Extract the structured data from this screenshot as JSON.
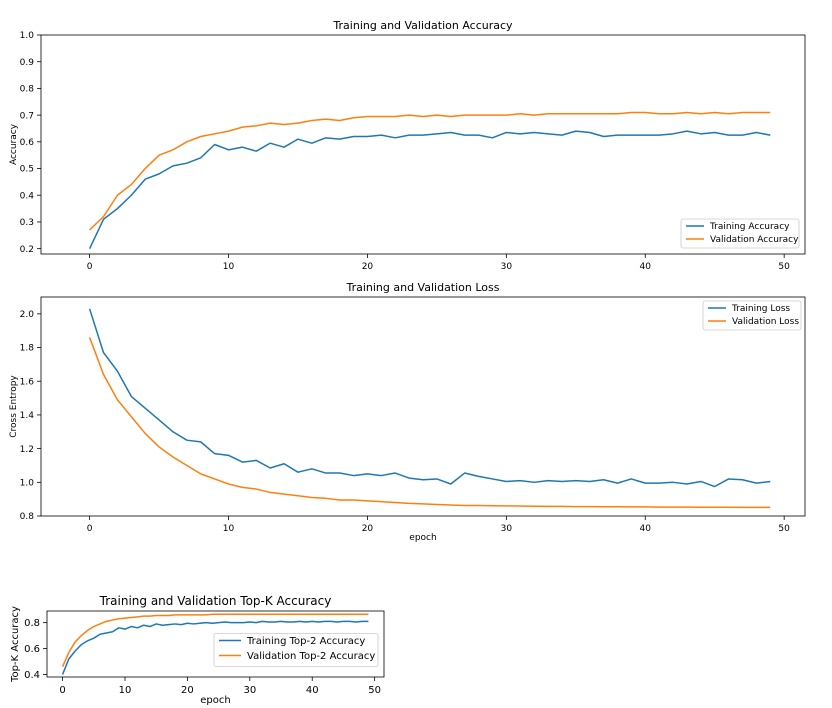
{
  "chart_data": [
    {
      "type": "line",
      "title": "Training and Validation Accuracy",
      "xlabel": "",
      "ylabel": "Accuracy",
      "xlim": [
        -3.5,
        51.5
      ],
      "ylim": [
        0.18,
        1.0
      ],
      "xticks": [
        0,
        10,
        20,
        30,
        40,
        50
      ],
      "yticks": [
        0.2,
        0.3,
        0.4,
        0.5,
        0.6,
        0.7,
        0.8,
        0.9,
        1.0
      ],
      "xtick_labels": [
        "0",
        "10",
        "20",
        "30",
        "40",
        "50"
      ],
      "ytick_labels": [
        "0.2",
        "0.3",
        "0.4",
        "0.5",
        "0.6",
        "0.7",
        "0.8",
        "0.9",
        "1.0"
      ],
      "legend": "lower-right",
      "grid": false,
      "x": [
        0,
        1,
        2,
        3,
        4,
        5,
        6,
        7,
        8,
        9,
        10,
        11,
        12,
        13,
        14,
        15,
        16,
        17,
        18,
        19,
        20,
        21,
        22,
        23,
        24,
        25,
        26,
        27,
        28,
        29,
        30,
        31,
        32,
        33,
        34,
        35,
        36,
        37,
        38,
        39,
        40,
        41,
        42,
        43,
        44,
        45,
        46,
        47,
        48,
        49
      ],
      "series": [
        {
          "name": "Training Accuracy",
          "color": "#1f77b4",
          "values": [
            0.2,
            0.31,
            0.35,
            0.4,
            0.46,
            0.48,
            0.51,
            0.52,
            0.54,
            0.59,
            0.57,
            0.58,
            0.565,
            0.595,
            0.58,
            0.61,
            0.595,
            0.615,
            0.61,
            0.62,
            0.62,
            0.625,
            0.615,
            0.625,
            0.625,
            0.63,
            0.635,
            0.625,
            0.625,
            0.615,
            0.635,
            0.63,
            0.635,
            0.63,
            0.625,
            0.64,
            0.635,
            0.62,
            0.625,
            0.625,
            0.625,
            0.625,
            0.63,
            0.64,
            0.63,
            0.635,
            0.625,
            0.625,
            0.635,
            0.625
          ]
        },
        {
          "name": "Validation Accuracy",
          "color": "#ff7f0e",
          "values": [
            0.27,
            0.32,
            0.4,
            0.44,
            0.5,
            0.55,
            0.57,
            0.6,
            0.62,
            0.63,
            0.64,
            0.655,
            0.66,
            0.67,
            0.665,
            0.67,
            0.68,
            0.685,
            0.68,
            0.69,
            0.695,
            0.695,
            0.695,
            0.7,
            0.695,
            0.7,
            0.695,
            0.7,
            0.7,
            0.7,
            0.7,
            0.705,
            0.7,
            0.705,
            0.705,
            0.705,
            0.705,
            0.705,
            0.705,
            0.71,
            0.71,
            0.705,
            0.705,
            0.71,
            0.705,
            0.71,
            0.705,
            0.71,
            0.71,
            0.71
          ]
        }
      ]
    },
    {
      "type": "line",
      "title": "Training and Validation Loss",
      "xlabel": "epoch",
      "ylabel": "Cross Entropy",
      "xlim": [
        -3.5,
        51.5
      ],
      "ylim": [
        0.8,
        2.1
      ],
      "xticks": [
        0,
        10,
        20,
        30,
        40,
        50
      ],
      "yticks": [
        0.8,
        1.0,
        1.2,
        1.4,
        1.6,
        1.8,
        2.0
      ],
      "xtick_labels": [
        "0",
        "10",
        "20",
        "30",
        "40",
        "50"
      ],
      "ytick_labels": [
        "0.8",
        "1.0",
        "1.2",
        "1.4",
        "1.6",
        "1.8",
        "2.0"
      ],
      "legend": "upper-right",
      "grid": false,
      "x": [
        0,
        1,
        2,
        3,
        4,
        5,
        6,
        7,
        8,
        9,
        10,
        11,
        12,
        13,
        14,
        15,
        16,
        17,
        18,
        19,
        20,
        21,
        22,
        23,
        24,
        25,
        26,
        27,
        28,
        29,
        30,
        31,
        32,
        33,
        34,
        35,
        36,
        37,
        38,
        39,
        40,
        41,
        42,
        43,
        44,
        45,
        46,
        47,
        48,
        49
      ],
      "series": [
        {
          "name": "Training Loss",
          "color": "#1f77b4",
          "values": [
            2.03,
            1.77,
            1.66,
            1.51,
            1.44,
            1.37,
            1.3,
            1.25,
            1.24,
            1.17,
            1.16,
            1.12,
            1.13,
            1.085,
            1.11,
            1.06,
            1.08,
            1.055,
            1.055,
            1.04,
            1.05,
            1.04,
            1.055,
            1.025,
            1.015,
            1.02,
            0.99,
            1.055,
            1.035,
            1.02,
            1.005,
            1.01,
            1.0,
            1.01,
            1.005,
            1.01,
            1.005,
            1.015,
            0.995,
            1.02,
            0.995,
            0.995,
            1.0,
            0.99,
            1.005,
            0.975,
            1.02,
            1.015,
            0.995,
            1.005
          ]
        },
        {
          "name": "Validation Loss",
          "color": "#ff7f0e",
          "values": [
            1.86,
            1.64,
            1.49,
            1.39,
            1.29,
            1.21,
            1.15,
            1.1,
            1.05,
            1.02,
            0.99,
            0.97,
            0.96,
            0.94,
            0.93,
            0.92,
            0.91,
            0.905,
            0.895,
            0.895,
            0.89,
            0.885,
            0.88,
            0.875,
            0.872,
            0.868,
            0.865,
            0.862,
            0.862,
            0.861,
            0.86,
            0.859,
            0.858,
            0.857,
            0.857,
            0.856,
            0.856,
            0.855,
            0.855,
            0.854,
            0.854,
            0.853,
            0.853,
            0.853,
            0.852,
            0.852,
            0.852,
            0.851,
            0.851,
            0.851
          ]
        }
      ]
    },
    {
      "type": "line",
      "title": "Training and Validation Top-K Accuracy",
      "xlabel": "epoch",
      "ylabel": "Top-K Accuracy",
      "xlim": [
        -2.5,
        51.5
      ],
      "ylim": [
        0.38,
        0.89
      ],
      "xticks": [
        0,
        10,
        20,
        30,
        40,
        50
      ],
      "yticks": [
        0.4,
        0.6,
        0.8
      ],
      "xtick_labels": [
        "0",
        "10",
        "20",
        "30",
        "40",
        "50"
      ],
      "ytick_labels": [
        "0.4",
        "0.6",
        "0.8"
      ],
      "legend": "right",
      "grid": false,
      "x": [
        0,
        1,
        2,
        3,
        4,
        5,
        6,
        7,
        8,
        9,
        10,
        11,
        12,
        13,
        14,
        15,
        16,
        17,
        18,
        19,
        20,
        21,
        22,
        23,
        24,
        25,
        26,
        27,
        28,
        29,
        30,
        31,
        32,
        33,
        34,
        35,
        36,
        37,
        38,
        39,
        40,
        41,
        42,
        43,
        44,
        45,
        46,
        47,
        48,
        49
      ],
      "series": [
        {
          "name": "Training Top-2 Accuracy",
          "color": "#1f77b4",
          "values": [
            0.4,
            0.52,
            0.58,
            0.63,
            0.66,
            0.68,
            0.71,
            0.72,
            0.73,
            0.76,
            0.75,
            0.77,
            0.76,
            0.78,
            0.77,
            0.79,
            0.78,
            0.785,
            0.79,
            0.785,
            0.795,
            0.79,
            0.795,
            0.8,
            0.795,
            0.8,
            0.805,
            0.8,
            0.8,
            0.8,
            0.805,
            0.8,
            0.81,
            0.805,
            0.805,
            0.81,
            0.805,
            0.805,
            0.81,
            0.805,
            0.81,
            0.805,
            0.81,
            0.81,
            0.805,
            0.81,
            0.81,
            0.805,
            0.81,
            0.81
          ]
        },
        {
          "name": "Validation Top-2 Accuracy",
          "color": "#ff7f0e",
          "values": [
            0.46,
            0.57,
            0.65,
            0.7,
            0.74,
            0.77,
            0.79,
            0.81,
            0.82,
            0.83,
            0.835,
            0.84,
            0.845,
            0.85,
            0.85,
            0.855,
            0.855,
            0.855,
            0.86,
            0.86,
            0.86,
            0.86,
            0.86,
            0.86,
            0.865,
            0.865,
            0.865,
            0.865,
            0.865,
            0.865,
            0.865,
            0.865,
            0.865,
            0.865,
            0.865,
            0.865,
            0.865,
            0.865,
            0.865,
            0.865,
            0.865,
            0.865,
            0.865,
            0.865,
            0.865,
            0.865,
            0.865,
            0.865,
            0.865,
            0.865
          ]
        }
      ]
    }
  ]
}
